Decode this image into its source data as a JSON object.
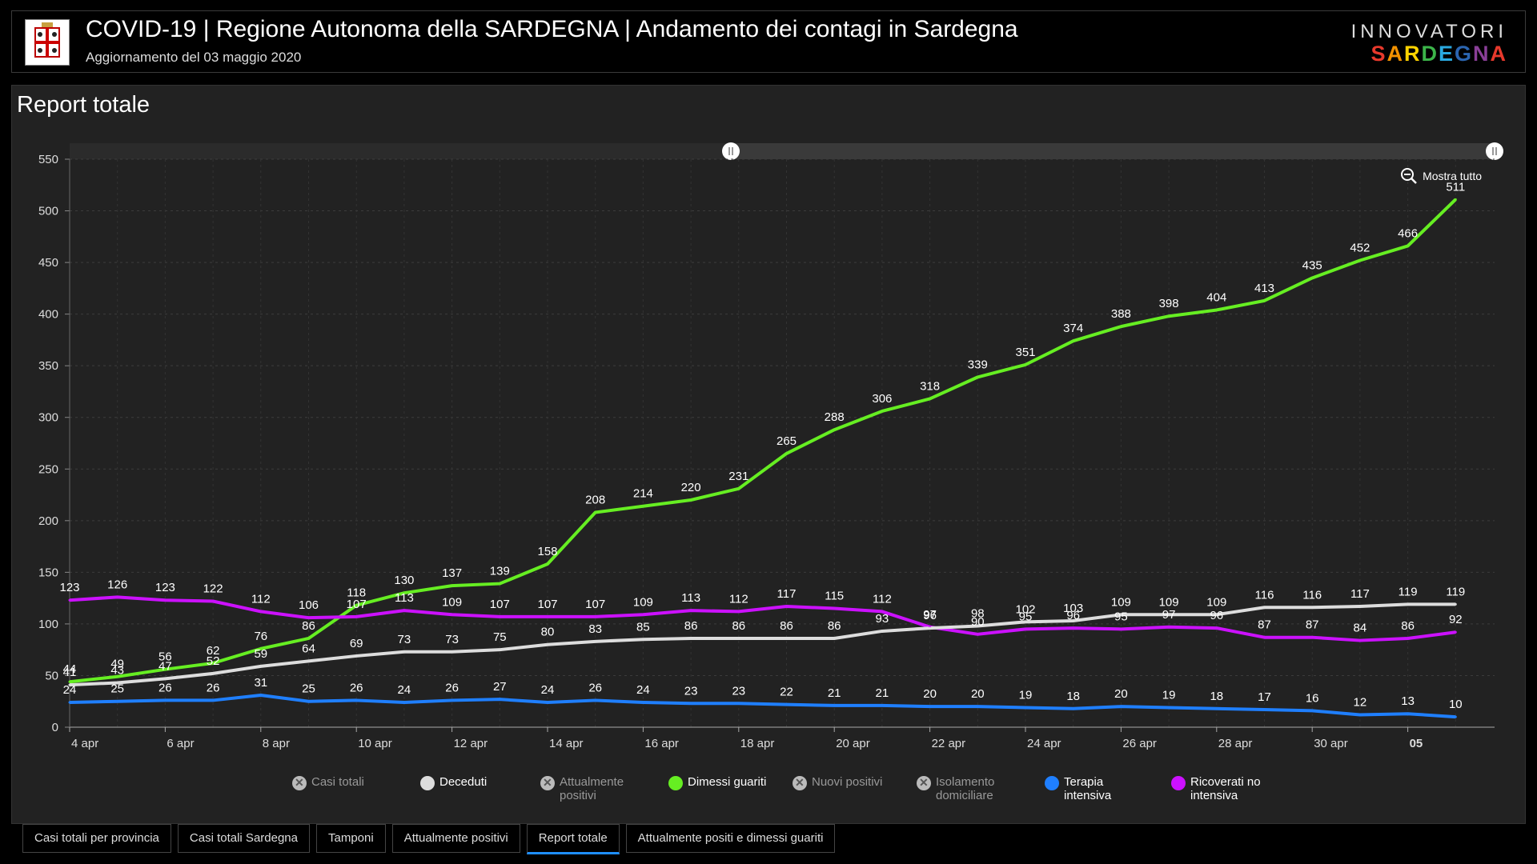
{
  "header": {
    "title": "COVID-19 | Regione Autonoma della SARDEGNA | Andamento dei contagi in Sardegna",
    "subtitle": "Aggiornamento del 03 maggio 2020",
    "brand_top": "INNOVATORI",
    "brand_bottom": "SARDEGNA"
  },
  "panel": {
    "title": "Report totale",
    "zoom_label": "Mostra tutto"
  },
  "legend": [
    {
      "label": "Casi totali",
      "active": false,
      "color": "#bbbbbb"
    },
    {
      "label": "Deceduti",
      "active": true,
      "color": "#dddddd"
    },
    {
      "label": "Attualmente positivi",
      "active": false,
      "color": "#bbbbbb"
    },
    {
      "label": "Dimessi guariti",
      "active": true,
      "color": "#66ee22"
    },
    {
      "label": "Nuovi positivi",
      "active": false,
      "color": "#bbbbbb"
    },
    {
      "label": "Isolamento domiciliare",
      "active": false,
      "color": "#bbbbbb"
    },
    {
      "label": "Terapia intensiva",
      "active": true,
      "color": "#1f7fff"
    },
    {
      "label": "Ricoverati no intensiva",
      "active": true,
      "color": "#cc11ff"
    }
  ],
  "tabs": [
    {
      "label": "Casi totali per provincia",
      "active": false
    },
    {
      "label": "Casi totali Sardegna",
      "active": false
    },
    {
      "label": "Tamponi",
      "active": false
    },
    {
      "label": "Attualmente positivi",
      "active": false
    },
    {
      "label": "Report totale",
      "active": true
    },
    {
      "label": "Attualmente positi e dimessi guariti",
      "active": false
    }
  ],
  "chart_data": {
    "type": "line",
    "x": [
      "4 apr",
      "5 apr",
      "6 apr",
      "7 apr",
      "8 apr",
      "9 apr",
      "10 apr",
      "11 apr",
      "12 apr",
      "13 apr",
      "14 apr",
      "15 apr",
      "16 apr",
      "17 apr",
      "18 apr",
      "19 apr",
      "20 apr",
      "21 apr",
      "22 apr",
      "23 apr",
      "24 apr",
      "25 apr",
      "26 apr",
      "27 apr",
      "28 apr",
      "29 apr",
      "30 apr",
      "1 mag",
      "2 mag",
      "3 mag"
    ],
    "x_tick_labels": [
      "4 apr",
      "6 apr",
      "8 apr",
      "10 apr",
      "12 apr",
      "14 apr",
      "16 apr",
      "18 apr",
      "20 apr",
      "22 apr",
      "24 apr",
      "26 apr",
      "28 apr",
      "30 apr",
      "05"
    ],
    "ylim": [
      0,
      550
    ],
    "y_ticks": [
      0,
      50,
      100,
      150,
      200,
      250,
      300,
      350,
      400,
      450,
      500,
      550
    ],
    "grid": true,
    "series": [
      {
        "name": "Dimessi guariti",
        "color": "#66ee22",
        "values": [
          44,
          49,
          56,
          62,
          76,
          86,
          118,
          130,
          137,
          139,
          158,
          208,
          214,
          220,
          231,
          265,
          288,
          306,
          318,
          339,
          351,
          374,
          388,
          398,
          404,
          413,
          435,
          452,
          466,
          511
        ]
      },
      {
        "name": "Ricoverati no intensiva",
        "color": "#cc11ff",
        "values": [
          123,
          126,
          123,
          122,
          112,
          106,
          107,
          113,
          109,
          107,
          107,
          107,
          109,
          113,
          112,
          117,
          115,
          112,
          97,
          90,
          95,
          96,
          95,
          97,
          96,
          87,
          87,
          84,
          86,
          92
        ]
      },
      {
        "name": "Deceduti",
        "color": "#dddddd",
        "values": [
          41,
          43,
          47,
          52,
          59,
          64,
          69,
          73,
          73,
          75,
          80,
          83,
          85,
          86,
          86,
          86,
          86,
          93,
          96,
          98,
          102,
          103,
          109,
          109,
          109,
          116,
          116,
          117,
          119,
          119
        ]
      },
      {
        "name": "Terapia intensiva",
        "color": "#1f7fff",
        "values": [
          24,
          25,
          26,
          26,
          31,
          25,
          26,
          24,
          26,
          27,
          24,
          26,
          24,
          23,
          23,
          22,
          21,
          21,
          20,
          20,
          19,
          18,
          20,
          19,
          18,
          17,
          16,
          12,
          13,
          10
        ]
      }
    ]
  }
}
